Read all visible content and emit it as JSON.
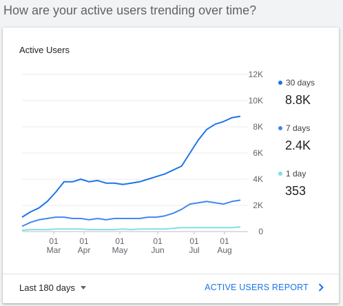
{
  "question": "How are your active users trending over time?",
  "card": {
    "title": "Active Users",
    "range_label": "Last 180 days",
    "report_link": "ACTIVE USERS REPORT"
  },
  "legend": [
    {
      "label": "30 days",
      "value": "8.8K",
      "color": "#1a73e8"
    },
    {
      "label": "7 days",
      "value": "2.4K",
      "color": "#4285f4"
    },
    {
      "label": "1 day",
      "value": "353",
      "color": "#80deea"
    }
  ],
  "chart_data": {
    "type": "line",
    "title": "Active Users",
    "ylim": [
      0,
      12000
    ],
    "y_ticks": [
      "12K",
      "10K",
      "8K",
      "6K",
      "4K",
      "2K",
      "0"
    ],
    "x_ticks": [
      {
        "day": "01",
        "month": "Mar"
      },
      {
        "day": "01",
        "month": "Apr"
      },
      {
        "day": "01",
        "month": "May"
      },
      {
        "day": "01",
        "month": "Jun"
      },
      {
        "day": "01",
        "month": "Jul"
      },
      {
        "day": "01",
        "month": "Aug"
      }
    ],
    "grid": true,
    "x_dates": [
      "2025-02-08",
      "2025-02-15",
      "2025-02-22",
      "2025-03-01",
      "2025-03-08",
      "2025-03-15",
      "2025-03-22",
      "2025-03-29",
      "2025-04-05",
      "2025-04-12",
      "2025-04-19",
      "2025-04-26",
      "2025-05-03",
      "2025-05-10",
      "2025-05-17",
      "2025-05-24",
      "2025-05-31",
      "2025-06-07",
      "2025-06-14",
      "2025-06-21",
      "2025-06-28",
      "2025-07-05",
      "2025-07-12",
      "2025-07-19",
      "2025-07-26",
      "2025-08-02",
      "2025-08-09"
    ],
    "series": [
      {
        "name": "30 days",
        "color": "#1a73e8",
        "values": [
          1100,
          1500,
          1800,
          2300,
          3000,
          3800,
          3800,
          4000,
          3800,
          3900,
          3700,
          3700,
          3600,
          3700,
          3800,
          4000,
          4200,
          4400,
          4700,
          5000,
          6000,
          7000,
          7800,
          8200,
          8400,
          8700,
          8800
        ]
      },
      {
        "name": "7 days",
        "color": "#4285f4",
        "values": [
          400,
          700,
          900,
          1000,
          1100,
          1100,
          1000,
          1000,
          900,
          1000,
          900,
          1000,
          1000,
          1000,
          1000,
          1100,
          1100,
          1200,
          1400,
          1700,
          2100,
          2200,
          2300,
          2200,
          2100,
          2300,
          2400
        ]
      },
      {
        "name": "1 day",
        "color": "#80deea",
        "values": [
          100,
          150,
          150,
          150,
          200,
          200,
          200,
          200,
          150,
          150,
          150,
          150,
          200,
          150,
          200,
          200,
          200,
          200,
          250,
          300,
          300,
          300,
          300,
          300,
          300,
          300,
          353
        ]
      }
    ]
  }
}
